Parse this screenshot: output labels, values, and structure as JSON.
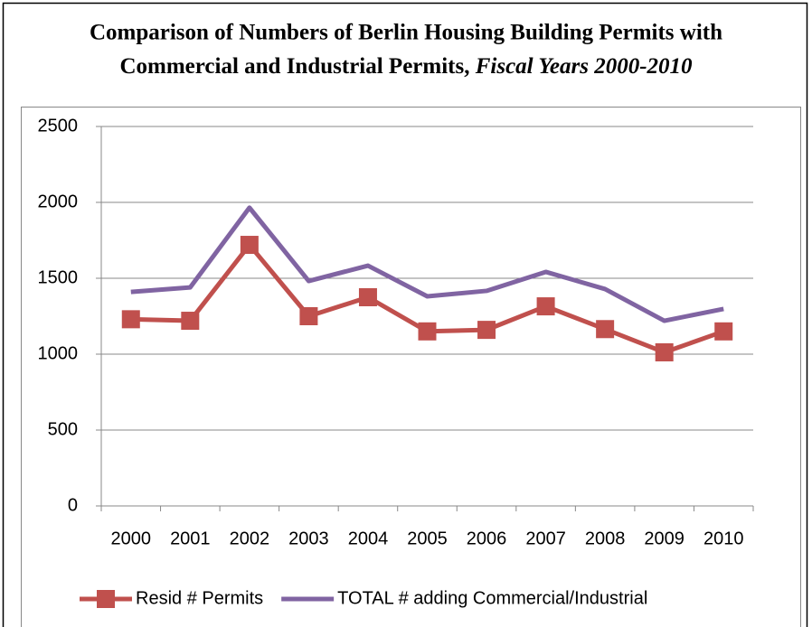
{
  "chart_data": {
    "type": "line",
    "title_lines": [
      "Comparison of Numbers of Berlin Housing Building Permits with",
      "Commercial and Industrial Permits,"
    ],
    "title_italic": "Fiscal Years 2000-2010",
    "categories": [
      "2000",
      "2001",
      "2002",
      "2003",
      "2004",
      "2005",
      "2006",
      "2007",
      "2008",
      "2009",
      "2010"
    ],
    "series": [
      {
        "name": "Resid # Permits",
        "color": "#c0504d",
        "marker": "square",
        "values": [
          1230,
          1220,
          1720,
          1250,
          1375,
          1150,
          1160,
          1315,
          1165,
          1012,
          1150
        ]
      },
      {
        "name": "TOTAL # adding Commercial/Industrial",
        "color": "#8064a2",
        "values": [
          1410,
          1440,
          1965,
          1482,
          1583,
          1381,
          1417,
          1542,
          1429,
          1220,
          1298
        ]
      }
    ],
    "ylim": [
      0,
      2500
    ],
    "yticks": [
      0,
      500,
      1000,
      1500,
      2000,
      2500
    ],
    "grid": true,
    "legend": "bottom"
  }
}
